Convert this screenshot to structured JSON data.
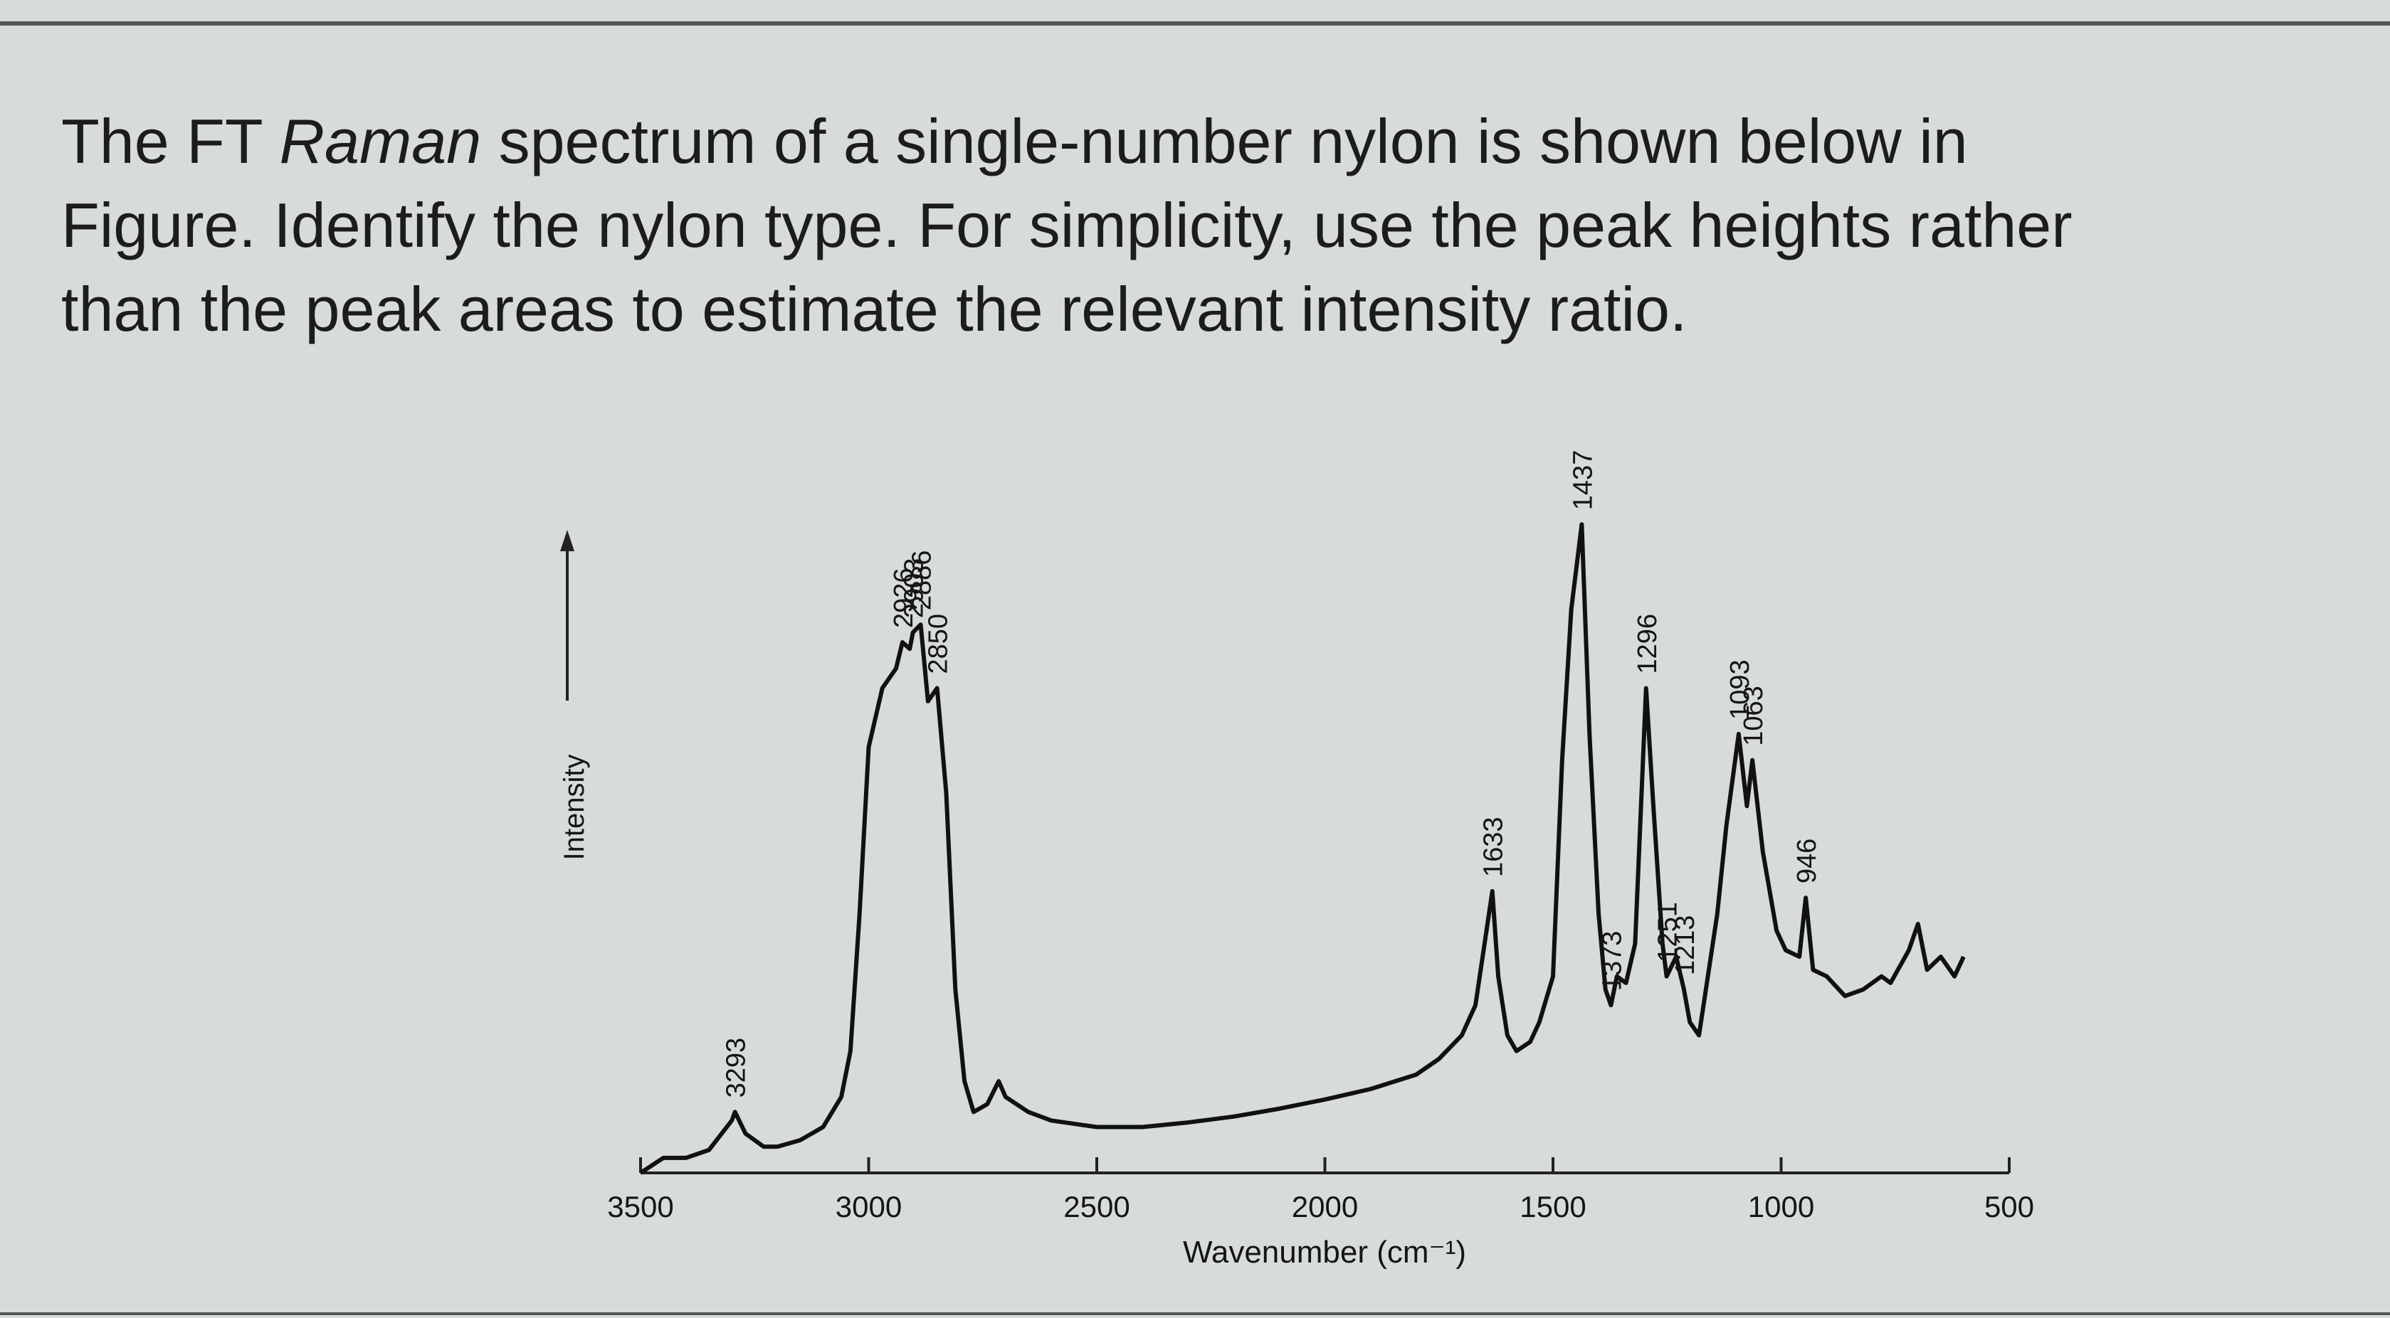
{
  "question": {
    "line1": [
      "The FT ",
      "Raman",
      " spectrum of a single-number nylon is shown below in"
    ],
    "line2": "Figure. Identify the nylon type. For simplicity, use the peak heights rather",
    "line3": "than the peak areas to estimate the relevant intensity ratio."
  },
  "chart_data": {
    "type": "line",
    "x_label": "Wavenumber (cm⁻¹)",
    "y_label": "Intensity",
    "color": "#111111",
    "xlim": [
      3500,
      500
    ],
    "xticks": [
      3500,
      3000,
      2500,
      2000,
      1500,
      1000,
      500
    ],
    "ylim": [
      0,
      100
    ],
    "x": [
      3500,
      3450,
      3400,
      3350,
      3300,
      3293,
      3270,
      3230,
      3200,
      3150,
      3100,
      3060,
      3040,
      3020,
      3000,
      2970,
      2940,
      2926,
      2910,
      2903,
      2886,
      2870,
      2850,
      2830,
      2810,
      2790,
      2770,
      2740,
      2715,
      2700,
      2650,
      2600,
      2500,
      2400,
      2300,
      2200,
      2100,
      2000,
      1900,
      1800,
      1750,
      1700,
      1670,
      1650,
      1633,
      1620,
      1600,
      1580,
      1550,
      1530,
      1500,
      1480,
      1460,
      1437,
      1420,
      1400,
      1385,
      1373,
      1360,
      1340,
      1320,
      1296,
      1280,
      1260,
      1251,
      1230,
      1213,
      1200,
      1180,
      1140,
      1120,
      1093,
      1075,
      1063,
      1040,
      1010,
      990,
      960,
      946,
      930,
      900,
      860,
      820,
      780,
      760,
      720,
      700,
      680,
      650,
      620,
      600
    ],
    "values": [
      0,
      2.3,
      2.3,
      3.5,
      8,
      9.3,
      6,
      4,
      4,
      5,
      7,
      11.6,
      18.6,
      39.5,
      65,
      74,
      77,
      81,
      80,
      82.5,
      83.7,
      72,
      74,
      58,
      28,
      14,
      9.3,
      10.5,
      14,
      11.6,
      9.3,
      8,
      7,
      7,
      7.7,
      8.6,
      9.8,
      11.2,
      12.8,
      15,
      17.4,
      21,
      25.6,
      35,
      43,
      30,
      21,
      18.6,
      20,
      23,
      30,
      63,
      86,
      99,
      67,
      39.5,
      28,
      25.6,
      30,
      29,
      35,
      74,
      56,
      35,
      30,
      33,
      28,
      23,
      21,
      39.5,
      53,
      67,
      56,
      63,
      49,
      37,
      34,
      33,
      42,
      31,
      30,
      27,
      28,
      30,
      29,
      34,
      38,
      31,
      33,
      30,
      33
    ],
    "peaks": [
      3293,
      2926,
      2903,
      2886,
      2850,
      1633,
      1437,
      1373,
      1296,
      1251,
      1213,
      1093,
      1063,
      946
    ]
  }
}
